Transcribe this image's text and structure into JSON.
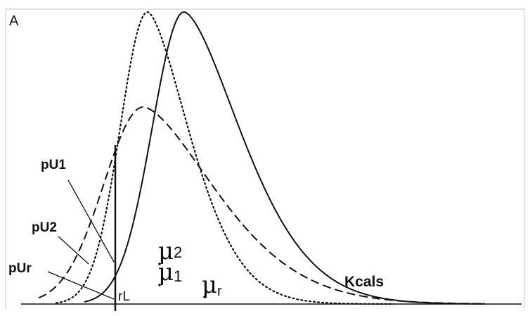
{
  "panel_label": "A",
  "labels": {
    "pU1": "pU1",
    "pU2": "pU2",
    "pUr": "pUr",
    "rL": "rL",
    "mu2_sym": "μ",
    "mu2_sub": "2",
    "mu1_sym": "μ",
    "mu1_sub": "1",
    "mur_sym": "μ",
    "mur_sub": "r",
    "x_axis": "Kcals"
  },
  "curves": [
    {
      "id": "mu-r",
      "style": "solid"
    },
    {
      "id": "mu-1",
      "style": "dotted"
    },
    {
      "id": "mu-2",
      "style": "dashed"
    }
  ],
  "colors": {
    "ink": "#111111",
    "frame": "#d8d8d8",
    "background": "#ffffff"
  }
}
